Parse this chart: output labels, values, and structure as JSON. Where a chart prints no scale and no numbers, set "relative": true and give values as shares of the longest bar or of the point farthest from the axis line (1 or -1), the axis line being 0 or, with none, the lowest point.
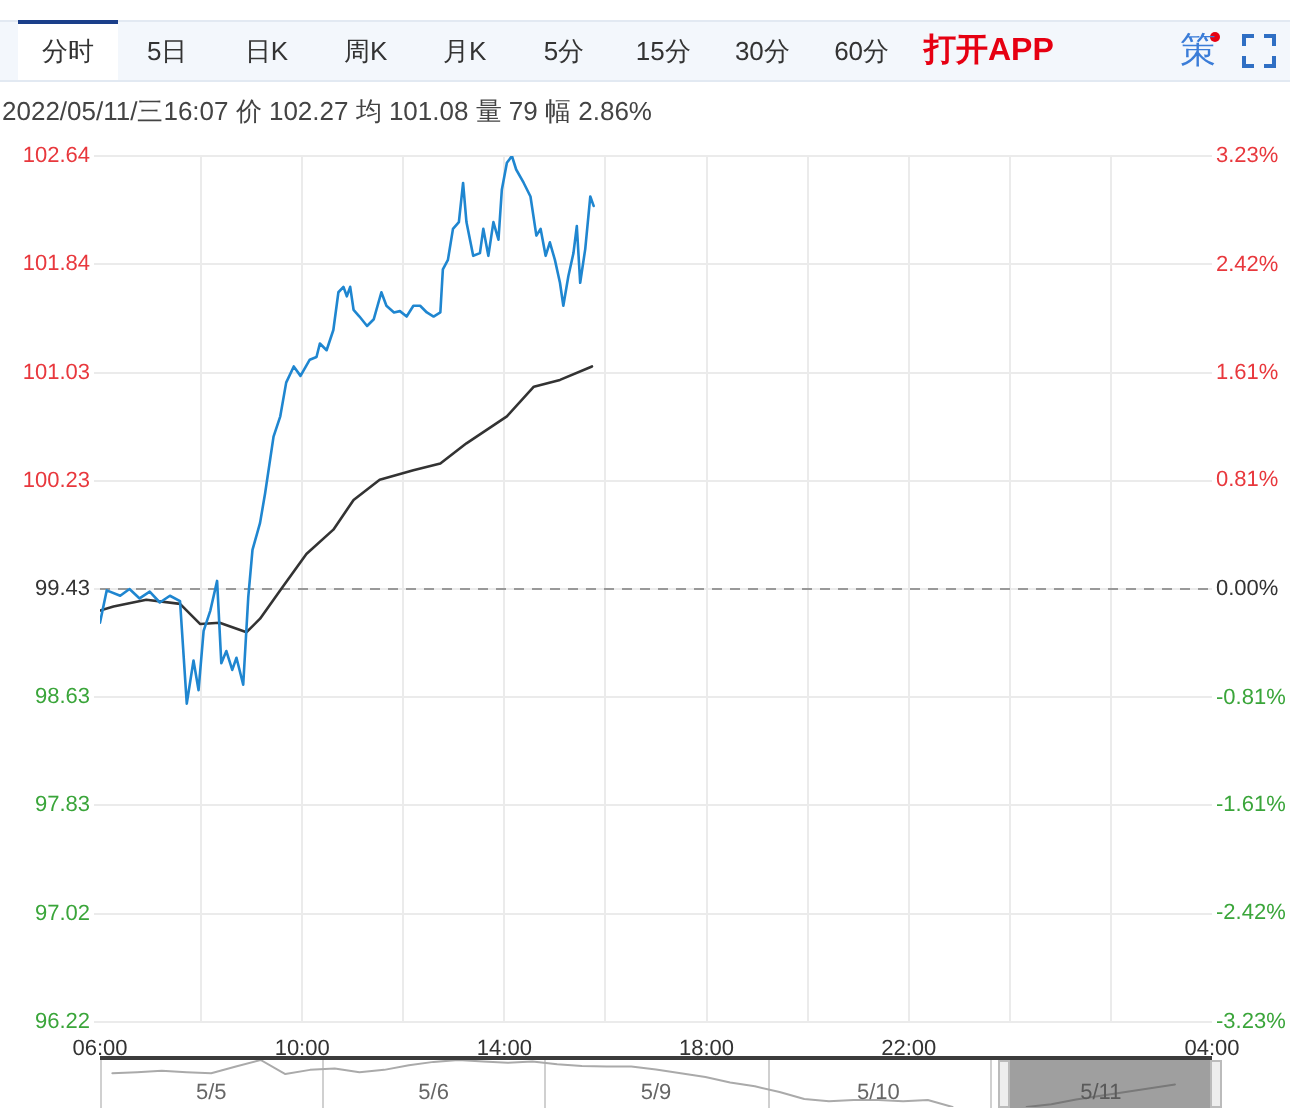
{
  "chart_data": [
    {
      "type": "line",
      "title": "2022/05/11/三16:07 价 102.27 均 101.08 量 79 幅 2.86%",
      "annotations": [
        "分时",
        "5日",
        "日K",
        "周K",
        "月K",
        "5分",
        "15分",
        "30分",
        "60分",
        "打开APP",
        "策"
      ],
      "series": [
        {
          "color": "#1f86d0",
          "x": [
            "2022-05-11T06:00",
            "2022-05-11T06:08",
            "2022-05-11T06:24",
            "2022-05-11T06:35",
            "2022-05-11T06:47",
            "2022-05-11T06:59",
            "2022-05-11T07:11",
            "2022-05-11T07:23",
            "2022-05-11T07:35",
            "2022-05-11T07:43",
            "2022-05-11T07:51",
            "2022-05-11T07:57",
            "2022-05-11T08:03",
            "2022-05-11T08:11",
            "2022-05-11T08:19",
            "2022-05-11T08:24",
            "2022-05-11T08:30",
            "2022-05-11T08:37",
            "2022-05-11T08:42",
            "2022-05-11T08:50",
            "2022-05-11T08:56",
            "2022-05-11T09:01",
            "2022-05-11T09:10",
            "2022-05-11T09:16",
            "2022-05-11T09:26",
            "2022-05-11T09:34",
            "2022-05-11T09:41",
            "2022-05-11T09:50",
            "2022-05-11T09:58",
            "2022-05-11T10:09",
            "2022-05-11T10:17",
            "2022-05-11T10:21",
            "2022-05-11T10:29",
            "2022-05-11T10:37",
            "2022-05-11T10:43",
            "2022-05-11T10:49",
            "2022-05-11T10:53",
            "2022-05-11T10:57",
            "2022-05-11T11:01",
            "2022-05-11T11:08",
            "2022-05-11T11:17",
            "2022-05-11T11:25",
            "2022-05-11T11:34",
            "2022-05-11T11:40",
            "2022-05-11T11:49",
            "2022-05-11T11:56",
            "2022-05-11T12:04",
            "2022-05-11T12:12",
            "2022-05-11T12:20",
            "2022-05-11T12:28",
            "2022-05-11T12:36",
            "2022-05-11T12:44",
            "2022-05-11T12:47",
            "2022-05-11T12:53",
            "2022-05-11T12:59",
            "2022-05-11T13:06",
            "2022-05-11T13:11",
            "2022-05-11T13:15",
            "2022-05-11T13:23",
            "2022-05-11T13:31",
            "2022-05-11T13:35",
            "2022-05-11T13:41",
            "2022-05-11T13:47",
            "2022-05-11T13:53",
            "2022-05-11T13:57",
            "2022-05-11T14:03",
            "2022-05-11T14:09",
            "2022-05-11T14:14",
            "2022-05-11T14:23",
            "2022-05-11T14:31",
            "2022-05-11T14:38",
            "2022-05-11T14:43",
            "2022-05-11T14:49",
            "2022-05-11T14:54",
            "2022-05-11T15:00",
            "2022-05-11T15:06",
            "2022-05-11T15:10",
            "2022-05-11T15:16",
            "2022-05-11T15:22",
            "2022-05-11T15:26",
            "2022-05-11T15:30",
            "2022-05-11T15:36",
            "2022-05-11T15:42",
            "2022-05-11T15:46"
          ],
          "values": [
            99.18,
            99.42,
            99.38,
            99.43,
            99.36,
            99.41,
            99.33,
            99.38,
            99.34,
            98.58,
            98.9,
            98.68,
            99.12,
            99.27,
            99.49,
            98.88,
            98.97,
            98.83,
            98.92,
            98.72,
            99.37,
            99.72,
            99.92,
            100.14,
            100.56,
            100.71,
            100.96,
            101.08,
            101.01,
            101.13,
            101.15,
            101.25,
            101.2,
            101.35,
            101.63,
            101.67,
            101.6,
            101.67,
            101.5,
            101.45,
            101.38,
            101.43,
            101.63,
            101.53,
            101.48,
            101.49,
            101.45,
            101.53,
            101.53,
            101.48,
            101.45,
            101.48,
            101.8,
            101.87,
            102.1,
            102.15,
            102.44,
            102.15,
            101.9,
            101.92,
            102.1,
            101.9,
            102.15,
            102.02,
            102.39,
            102.59,
            102.64,
            102.54,
            102.44,
            102.34,
            102.05,
            102.1,
            101.9,
            102.0,
            101.87,
            101.7,
            101.53,
            101.75,
            101.92,
            102.12,
            101.7,
            101.95,
            102.34,
            102.27
          ]
        },
        {
          "color": "#333333",
          "x": [
            "2022-05-11T06:00",
            "2022-05-11T06:16",
            "2022-05-11T06:55",
            "2022-05-11T07:35",
            "2022-05-11T07:43",
            "2022-05-11T07:59",
            "2022-05-11T08:22",
            "2022-05-11T08:54",
            "2022-05-11T09:10",
            "2022-05-11T09:34",
            "2022-05-11T10:05",
            "2022-05-11T10:37",
            "2022-05-11T11:01",
            "2022-05-11T11:32",
            "2022-05-11T12:12",
            "2022-05-11T12:44",
            "2022-05-11T13:15",
            "2022-05-11T14:03",
            "2022-05-11T14:35",
            "2022-05-11T15:06",
            "2022-05-11T15:44"
          ],
          "values": [
            99.27,
            99.3,
            99.35,
            99.32,
            99.27,
            99.17,
            99.18,
            99.11,
            99.21,
            99.42,
            99.69,
            99.87,
            100.09,
            100.24,
            100.31,
            100.36,
            100.51,
            100.71,
            100.93,
            100.98,
            101.08
          ]
        }
      ],
      "xlim": [
        "2022-05-11T06:00",
        "2022-05-12T04:00"
      ],
      "xticks": [
        {
          "value": "2022-05-11T06:00",
          "label": "06:00"
        },
        {
          "value": "2022-05-11T08:00",
          "label": null
        },
        {
          "value": "2022-05-11T10:00",
          "label": "10:00"
        },
        {
          "value": "2022-05-11T12:00",
          "label": null
        },
        {
          "value": "2022-05-11T14:00",
          "label": "14:00"
        },
        {
          "value": "2022-05-11T16:00",
          "label": null
        },
        {
          "value": "2022-05-11T18:00",
          "label": "18:00"
        },
        {
          "value": "2022-05-11T20:00",
          "label": null
        },
        {
          "value": "2022-05-11T22:00",
          "label": "22:00"
        },
        {
          "value": "2022-05-12T00:00",
          "label": null
        },
        {
          "value": "2022-05-12T02:00",
          "label": null
        },
        {
          "value": "2022-05-12T04:00",
          "label": "04:00"
        }
      ],
      "ylim": [
        96.22,
        102.64
      ],
      "yticks": [
        96.22,
        97.02,
        97.83,
        98.63,
        99.43,
        100.23,
        101.03,
        101.84,
        102.64
      ],
      "y2lim": [
        -3.23,
        3.23
      ],
      "y2ticks": [
        {
          "value": -3.23,
          "label": "-3.23%"
        },
        {
          "value": -2.42,
          "label": "-2.42%"
        },
        {
          "value": -1.61,
          "label": "-1.61%"
        },
        {
          "value": -0.81,
          "label": "-0.81%"
        },
        {
          "value": 0,
          "label": "0.00%"
        },
        {
          "value": 0.81,
          "label": "0.81%"
        },
        {
          "value": 1.61,
          "label": "1.61%"
        },
        {
          "value": 2.42,
          "label": "2.42%"
        },
        {
          "value": 3.23,
          "label": "3.23%"
        }
      ],
      "ref_lines": [
        {
          "axis": "y",
          "value": 99.43,
          "color": "#999999",
          "line_style": "dashed"
        }
      ],
      "grid": true,
      "legend": false,
      "marker": "none"
    },
    {
      "type": "line",
      "relative": true,
      "categories": [
        null,
        null,
        null,
        null,
        "5/5",
        null,
        null,
        null,
        null,
        null,
        null,
        null,
        null,
        "5/6",
        null,
        null,
        null,
        null,
        null,
        null,
        null,
        null,
        "5/9",
        null,
        null,
        null,
        null,
        null,
        null,
        null,
        null,
        "5/10",
        null,
        null,
        null,
        null,
        null,
        null,
        null,
        null,
        "5/11",
        null,
        null,
        null,
        null
      ],
      "series": [
        {
          "color": "#aaaaaa",
          "values": [
            0.72,
            0.74,
            0.77,
            0.74,
            0.72,
            0.86,
            1.0,
            0.7,
            0.79,
            0.82,
            0.74,
            0.79,
            0.89,
            0.96,
            1.0,
            0.97,
            0.94,
            0.97,
            0.91,
            0.87,
            0.86,
            0.86,
            0.8,
            0.72,
            0.64,
            0.52,
            0.44,
            0.32,
            0.17,
            0.12,
            0.15,
            0.15,
            0.12,
            0.15,
            0.0,
            null,
            null,
            0.0,
            0.06,
            0.16,
            0.24,
            0.32,
            0.4,
            0.48,
            null
          ]
        }
      ],
      "grid": "x",
      "legend": false,
      "marker": "none"
    }
  ]
}
